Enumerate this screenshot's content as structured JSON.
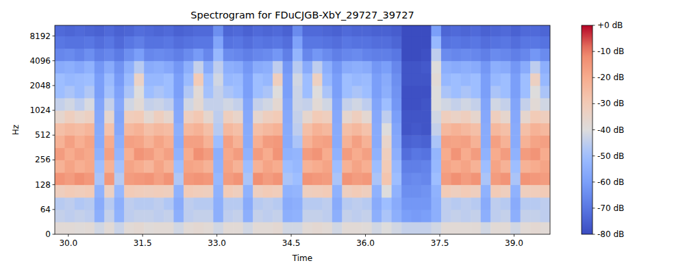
{
  "chart_data": {
    "type": "heatmap",
    "title": "Spectrogram for FDuCJGB-XbY_29727_39727",
    "x_label": "Time",
    "y_label": "Hz",
    "log": "y",
    "xlim": [
      29.727,
      39.727
    ],
    "xticks": [
      {
        "value": 30,
        "label": "30.0"
      },
      {
        "value": 31.5,
        "label": "31.5"
      },
      {
        "value": 33,
        "label": "33.0"
      },
      {
        "value": 34.5,
        "label": "34.5"
      },
      {
        "value": 36,
        "label": "36.0"
      },
      {
        "value": 37.5,
        "label": "37.5"
      },
      {
        "value": 39,
        "label": "39.0"
      }
    ],
    "ylim": [
      0,
      11025
    ],
    "yticks": [
      0,
      64,
      128,
      256,
      512,
      1024,
      2048,
      4096,
      8192
    ],
    "zlim": [
      -80,
      0
    ],
    "zticks": [
      {
        "value": 0,
        "label": "+0 dB"
      },
      {
        "value": -10,
        "label": "-10 dB"
      },
      {
        "value": -20,
        "label": "-20 dB"
      },
      {
        "value": -30,
        "label": "-30 dB"
      },
      {
        "value": -40,
        "label": "-40 dB"
      },
      {
        "value": -50,
        "label": "-50 dB"
      },
      {
        "value": -60,
        "label": "-60 dB"
      },
      {
        "value": -70,
        "label": "-70 dB"
      },
      {
        "value": -80,
        "label": "-80 dB"
      }
    ],
    "x_edges": [
      29.727,
      29.927,
      30.127,
      30.327,
      30.527,
      30.727,
      30.927,
      31.127,
      31.327,
      31.527,
      31.727,
      31.927,
      32.127,
      32.327,
      32.527,
      32.727,
      32.927,
      33.127,
      33.327,
      33.527,
      33.727,
      33.927,
      34.127,
      34.327,
      34.527,
      34.727,
      34.927,
      35.127,
      35.327,
      35.527,
      35.727,
      35.927,
      36.127,
      36.327,
      36.527,
      36.727,
      36.927,
      37.127,
      37.327,
      37.527,
      37.727,
      37.927,
      38.127,
      38.327,
      38.527,
      38.727,
      38.927,
      39.127,
      39.327,
      39.527,
      39.727
    ],
    "y_edges": [
      0,
      32,
      64,
      90,
      128,
      180,
      256,
      360,
      512,
      720,
      1024,
      1450,
      2048,
      2900,
      4096,
      5800,
      8192,
      11025
    ],
    "z": [
      [
        -38,
        -44,
        -46,
        -32,
        -14,
        -22,
        -16,
        -22,
        -26,
        -36,
        -44,
        -50,
        -50,
        -56,
        -66,
        -70,
        -73
      ],
      [
        -38,
        -45,
        -45,
        -30,
        -16,
        -18,
        -20,
        -17,
        -24,
        -32,
        -42,
        -48,
        -52,
        -55,
        -65,
        -71,
        -74
      ],
      [
        -39,
        -44,
        -47,
        -31,
        -13,
        -21,
        -17,
        -21,
        -25,
        -35,
        -45,
        -51,
        -51,
        -57,
        -67,
        -71,
        -73
      ],
      [
        -38,
        -45,
        -46,
        -30,
        -15,
        -19,
        -19,
        -18,
        -23,
        -33,
        -41,
        -47,
        -50,
        -54,
        -64,
        -70,
        -74
      ],
      [
        -42,
        -55,
        -56,
        -54,
        -48,
        -50,
        -54,
        -56,
        -56,
        -57,
        -58,
        -60,
        -60,
        -62,
        -68,
        -72,
        -75
      ],
      [
        -38,
        -44,
        -46,
        -33,
        -15,
        -22,
        -17,
        -20,
        -27,
        -36,
        -44,
        -49,
        -51,
        -56,
        -66,
        -70,
        -73
      ],
      [
        -43,
        -54,
        -55,
        -52,
        -46,
        -49,
        -53,
        -55,
        -57,
        -58,
        -57,
        -59,
        -61,
        -63,
        -69,
        -73,
        -75
      ],
      [
        -38,
        -45,
        -45,
        -30,
        -16,
        -18,
        -21,
        -17,
        -24,
        -31,
        -42,
        -48,
        -51,
        -55,
        -64,
        -70,
        -74
      ],
      [
        -37,
        -44,
        -46,
        -31,
        -15,
        -20,
        -14,
        -18,
        -22,
        -30,
        -38,
        -40,
        -34,
        -46,
        -60,
        -68,
        -72
      ],
      [
        -39,
        -44,
        -46,
        -32,
        -14,
        -23,
        -16,
        -22,
        -26,
        -37,
        -44,
        -50,
        -52,
        -56,
        -66,
        -71,
        -73
      ],
      [
        -38,
        -45,
        -45,
        -31,
        -17,
        -18,
        -20,
        -18,
        -24,
        -32,
        -43,
        -48,
        -52,
        -55,
        -65,
        -71,
        -74
      ],
      [
        -38,
        -44,
        -47,
        -32,
        -14,
        -22,
        -17,
        -21,
        -25,
        -36,
        -45,
        -50,
        -50,
        -57,
        -66,
        -70,
        -73
      ],
      [
        -42,
        -55,
        -56,
        -54,
        -47,
        -50,
        -54,
        -56,
        -55,
        -57,
        -58,
        -60,
        -60,
        -62,
        -68,
        -72,
        -75
      ],
      [
        -38,
        -45,
        -45,
        -30,
        -15,
        -18,
        -20,
        -17,
        -24,
        -32,
        -42,
        -47,
        -51,
        -55,
        -65,
        -71,
        -74
      ],
      [
        -37,
        -44,
        -46,
        -31,
        -14,
        -19,
        -13,
        -17,
        -22,
        -29,
        -37,
        -38,
        -30,
        -44,
        -61,
        -70,
        -73
      ],
      [
        -38,
        -44,
        -46,
        -32,
        -15,
        -22,
        -16,
        -22,
        -26,
        -36,
        -44,
        -49,
        -50,
        -56,
        -66,
        -70,
        -73
      ],
      [
        -42,
        -55,
        -55,
        -54,
        -52,
        -54,
        -55,
        -50,
        -46,
        -45,
        -44,
        -44,
        -42,
        -45,
        -52,
        -58,
        -64
      ],
      [
        -38,
        -45,
        -46,
        -30,
        -16,
        -18,
        -19,
        -17,
        -24,
        -32,
        -42,
        -48,
        -52,
        -55,
        -65,
        -71,
        -74
      ],
      [
        -38,
        -44,
        -46,
        -32,
        -14,
        -22,
        -16,
        -22,
        -26,
        -35,
        -44,
        -50,
        -51,
        -56,
        -66,
        -70,
        -73
      ],
      [
        -42,
        -55,
        -56,
        -54,
        -48,
        -50,
        -54,
        -56,
        -56,
        -57,
        -58,
        -60,
        -60,
        -62,
        -68,
        -72,
        -75
      ],
      [
        -38,
        -44,
        -46,
        -32,
        -13,
        -22,
        -16,
        -21,
        -26,
        -36,
        -44,
        -50,
        -50,
        -56,
        -66,
        -70,
        -73
      ],
      [
        -38,
        -45,
        -45,
        -30,
        -16,
        -18,
        -20,
        -16,
        -24,
        -32,
        -42,
        -48,
        -52,
        -55,
        -65,
        -71,
        -74
      ],
      [
        -37,
        -44,
        -46,
        -31,
        -14,
        -20,
        -14,
        -15,
        -22,
        -30,
        -37,
        -40,
        -32,
        -45,
        -62,
        -70,
        -73
      ],
      [
        -42,
        -55,
        -56,
        -54,
        -48,
        -50,
        -54,
        -56,
        -56,
        -57,
        -58,
        -60,
        -60,
        -62,
        -68,
        -72,
        -75
      ],
      [
        -42,
        -54,
        -55,
        -53,
        -50,
        -52,
        -53,
        -48,
        -45,
        -44,
        -43,
        -43,
        -42,
        -46,
        -53,
        -59,
        -65
      ],
      [
        -38,
        -44,
        -46,
        -32,
        -14,
        -22,
        -16,
        -22,
        -26,
        -36,
        -44,
        -50,
        -50,
        -56,
        -66,
        -70,
        -73
      ],
      [
        -37,
        -44,
        -46,
        -31,
        -15,
        -20,
        -14,
        -18,
        -22,
        -30,
        -38,
        -40,
        -33,
        -45,
        -62,
        -70,
        -73
      ],
      [
        -38,
        -45,
        -45,
        -30,
        -16,
        -18,
        -20,
        -17,
        -24,
        -32,
        -42,
        -48,
        -52,
        -55,
        -65,
        -71,
        -74
      ],
      [
        -42,
        -55,
        -56,
        -54,
        -48,
        -50,
        -54,
        -56,
        -56,
        -57,
        -58,
        -60,
        -60,
        -62,
        -68,
        -72,
        -75
      ],
      [
        -38,
        -44,
        -46,
        -32,
        -14,
        -22,
        -16,
        -22,
        -26,
        -36,
        -44,
        -50,
        -50,
        -56,
        -66,
        -70,
        -73
      ],
      [
        -38,
        -45,
        -45,
        -30,
        -16,
        -18,
        -20,
        -17,
        -24,
        -32,
        -42,
        -48,
        -52,
        -55,
        -65,
        -71,
        -74
      ],
      [
        -39,
        -44,
        -46,
        -32,
        -15,
        -21,
        -17,
        -22,
        -27,
        -37,
        -45,
        -50,
        -51,
        -56,
        -67,
        -71,
        -74
      ],
      [
        -42,
        -55,
        -56,
        -54,
        -48,
        -50,
        -54,
        -56,
        -56,
        -57,
        -58,
        -60,
        -60,
        -62,
        -68,
        -72,
        -75
      ],
      [
        -40,
        -48,
        -50,
        -40,
        -28,
        -30,
        -32,
        -35,
        -40,
        -45,
        -50,
        -55,
        -56,
        -60,
        -68,
        -72,
        -75
      ],
      [
        -42,
        -55,
        -56,
        -54,
        -50,
        -52,
        -55,
        -57,
        -58,
        -60,
        -62,
        -63,
        -64,
        -66,
        -70,
        -74,
        -76
      ],
      [
        -44,
        -60,
        -62,
        -64,
        -66,
        -68,
        -72,
        -75,
        -78,
        -78,
        -79,
        -79,
        -78,
        -78,
        -80,
        -80,
        -80
      ],
      [
        -44,
        -61,
        -62,
        -64,
        -65,
        -68,
        -70,
        -74,
        -77,
        -78,
        -79,
        -79,
        -78,
        -78,
        -80,
        -80,
        -80
      ],
      [
        -44,
        -60,
        -62,
        -63,
        -66,
        -67,
        -71,
        -75,
        -78,
        -78,
        -78,
        -79,
        -78,
        -77,
        -79,
        -80,
        -80
      ],
      [
        -42,
        -55,
        -55,
        -54,
        -50,
        -52,
        -53,
        -48,
        -44,
        -42,
        -40,
        -40,
        -38,
        -40,
        -45,
        -52,
        -60
      ],
      [
        -38,
        -45,
        -45,
        -30,
        -16,
        -18,
        -20,
        -17,
        -24,
        -32,
        -42,
        -48,
        -52,
        -55,
        -65,
        -71,
        -74
      ],
      [
        -38,
        -44,
        -46,
        -32,
        -13,
        -20,
        -14,
        -18,
        -22,
        -34,
        -44,
        -50,
        -50,
        -56,
        -66,
        -70,
        -73
      ],
      [
        -38,
        -45,
        -45,
        -30,
        -16,
        -18,
        -20,
        -17,
        -24,
        -32,
        -42,
        -48,
        -52,
        -55,
        -65,
        -71,
        -74
      ],
      [
        -38,
        -44,
        -46,
        -32,
        -14,
        -22,
        -16,
        -22,
        -26,
        -36,
        -44,
        -50,
        -50,
        -56,
        -66,
        -70,
        -73
      ],
      [
        -42,
        -55,
        -56,
        -54,
        -48,
        -50,
        -54,
        -56,
        -56,
        -57,
        -58,
        -60,
        -60,
        -62,
        -68,
        -72,
        -75
      ],
      [
        -38,
        -45,
        -45,
        -30,
        -16,
        -18,
        -20,
        -17,
        -24,
        -32,
        -42,
        -48,
        -52,
        -55,
        -65,
        -71,
        -74
      ],
      [
        -38,
        -44,
        -46,
        -32,
        -14,
        -22,
        -16,
        -22,
        -26,
        -36,
        -44,
        -50,
        -50,
        -56,
        -66,
        -70,
        -73
      ],
      [
        -42,
        -55,
        -56,
        -54,
        -48,
        -50,
        -54,
        -56,
        -56,
        -57,
        -58,
        -60,
        -60,
        -62,
        -68,
        -72,
        -75
      ],
      [
        -38,
        -44,
        -46,
        -32,
        -14,
        -22,
        -16,
        -22,
        -26,
        -36,
        -44,
        -50,
        -50,
        -56,
        -66,
        -70,
        -73
      ],
      [
        -37,
        -44,
        -46,
        -31,
        -15,
        -20,
        -14,
        -18,
        -22,
        -30,
        -38,
        -40,
        -33,
        -45,
        -62,
        -70,
        -73
      ],
      [
        -38,
        -45,
        -45,
        -30,
        -16,
        -18,
        -20,
        -17,
        -24,
        -32,
        -42,
        -48,
        -52,
        -55,
        -65,
        -71,
        -74
      ]
    ]
  }
}
